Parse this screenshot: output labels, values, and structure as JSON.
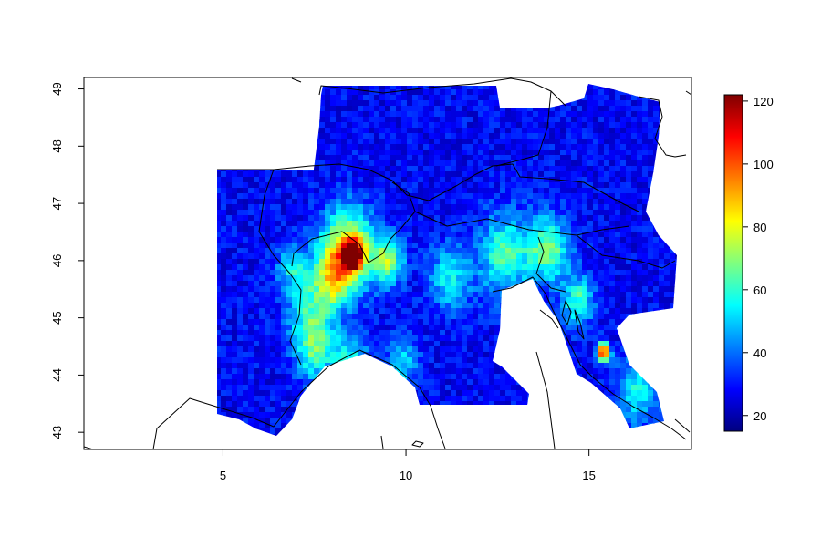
{
  "chart_data": {
    "type": "heatmap",
    "title": "",
    "xlabel": "",
    "ylabel": "",
    "xlim": [
      1.2,
      17.8
    ],
    "ylim": [
      42.7,
      49.2
    ],
    "x_ticks": [
      5,
      10,
      15
    ],
    "y_ticks": [
      43,
      44,
      45,
      46,
      47,
      48,
      49
    ],
    "x_tick_labels": [
      "5",
      "10",
      "15"
    ],
    "y_tick_labels": [
      "43",
      "44",
      "45",
      "46",
      "47",
      "48",
      "49"
    ],
    "grid": false,
    "colorbar": {
      "min": 15,
      "max": 122,
      "ticks": [
        20,
        40,
        60,
        80,
        100,
        120
      ],
      "tick_labels": [
        "20",
        "40",
        "60",
        "80",
        "100",
        "120"
      ],
      "palette": [
        "#00007F",
        "#0000FF",
        "#007FFF",
        "#00FFFF",
        "#7FFF7F",
        "#FFFF00",
        "#FF7F00",
        "#FF0000",
        "#7F0000"
      ]
    },
    "background_level": 28,
    "hotspots": [
      {
        "lon": 8.55,
        "lat": 46.1,
        "value": 122,
        "spread": 0.17
      },
      {
        "lon": 8.4,
        "lat": 46.2,
        "value": 85,
        "spread": 0.5
      },
      {
        "lon": 8.0,
        "lat": 45.7,
        "value": 65,
        "spread": 0.35
      },
      {
        "lon": 9.5,
        "lat": 46.0,
        "value": 70,
        "spread": 0.3
      },
      {
        "lon": 7.4,
        "lat": 45.1,
        "value": 58,
        "spread": 0.45
      },
      {
        "lon": 7.5,
        "lat": 44.4,
        "value": 58,
        "spread": 0.35
      },
      {
        "lon": 8.5,
        "lat": 44.3,
        "value": 55,
        "spread": 0.35
      },
      {
        "lon": 11.2,
        "lat": 45.7,
        "value": 55,
        "spread": 0.4
      },
      {
        "lon": 12.7,
        "lat": 46.1,
        "value": 62,
        "spread": 0.5
      },
      {
        "lon": 13.9,
        "lat": 46.2,
        "value": 68,
        "spread": 0.4
      },
      {
        "lon": 14.7,
        "lat": 45.3,
        "value": 62,
        "spread": 0.3
      },
      {
        "lon": 15.4,
        "lat": 44.4,
        "value": 108,
        "spread": 0.12
      },
      {
        "lon": 16.3,
        "lat": 43.7,
        "value": 55,
        "spread": 0.4
      },
      {
        "lon": 9.9,
        "lat": 44.2,
        "value": 52,
        "spread": 0.3
      },
      {
        "lon": 6.9,
        "lat": 45.9,
        "value": 52,
        "spread": 0.3
      }
    ]
  }
}
